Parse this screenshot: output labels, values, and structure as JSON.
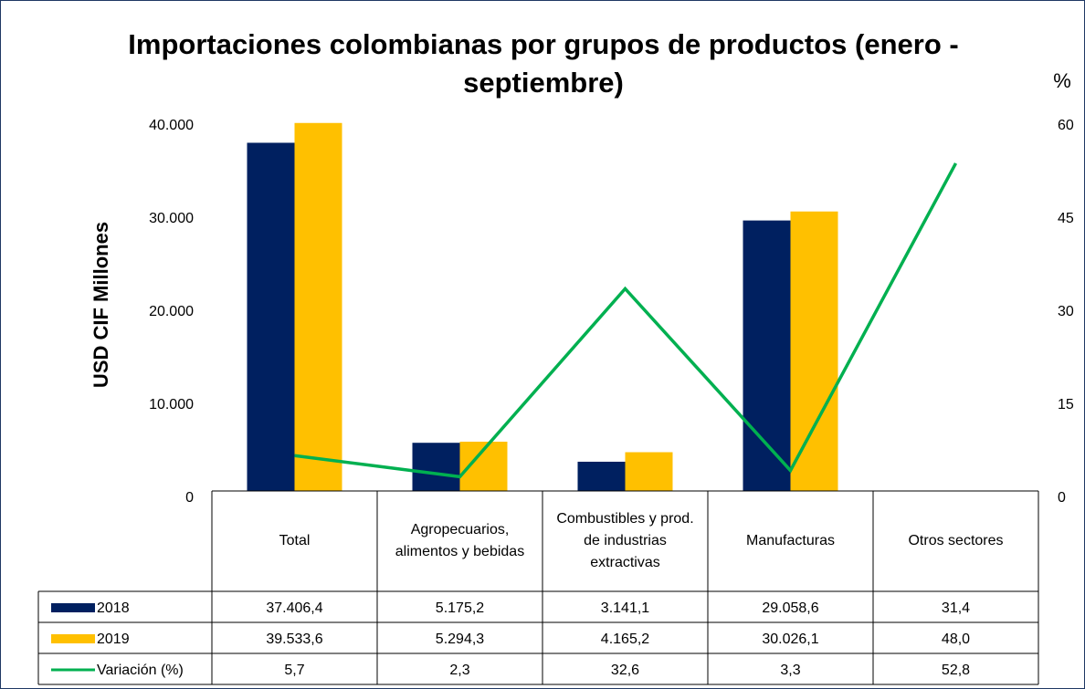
{
  "chart_data": {
    "type": "bar",
    "title": "Importaciones colombianas por grupos de productos (enero - septiembre)",
    "y_label": "USD CIF Millones",
    "y2_label": "%",
    "categories": [
      "Total",
      "Agropecuarios, alimentos y bebidas",
      "Combustibles y prod. de industrias extractivas",
      "Manufacturas",
      "Otros sectores"
    ],
    "series": [
      {
        "name": "2018",
        "type": "bar",
        "color": "#002060",
        "values": [
          37406.4,
          5175.2,
          3141.1,
          29058.6,
          31.4
        ],
        "value_labels": [
          "37.406,4",
          "5.175,2",
          "3.141,1",
          "29.058,6",
          "31,4"
        ]
      },
      {
        "name": "2019",
        "type": "bar",
        "color": "#ffc000",
        "values": [
          39533.6,
          5294.3,
          4165.2,
          30026.1,
          48.0
        ],
        "value_labels": [
          "39.533,6",
          "5.294,3",
          "4.165,2",
          "30.026,1",
          "48,0"
        ]
      },
      {
        "name": "Variación (%)",
        "type": "line",
        "axis": "y2",
        "color": "#00b050",
        "values": [
          5.7,
          2.3,
          32.6,
          3.3,
          52.8
        ],
        "value_labels": [
          "5,7",
          "2,3",
          "32,6",
          "3,3",
          "52,8"
        ]
      }
    ],
    "ylim": [
      0,
      40000
    ],
    "yticks": [
      0,
      {
        "value": 10000,
        "label": "10.000"
      },
      {
        "value": 20000,
        "label": "20.000"
      },
      {
        "value": 30000,
        "label": "30.000"
      },
      {
        "value": 40000,
        "label": "40.000"
      }
    ],
    "y2lim": [
      0,
      60
    ],
    "y2ticks": [
      0,
      15,
      30,
      45,
      60
    ],
    "grid": false
  }
}
